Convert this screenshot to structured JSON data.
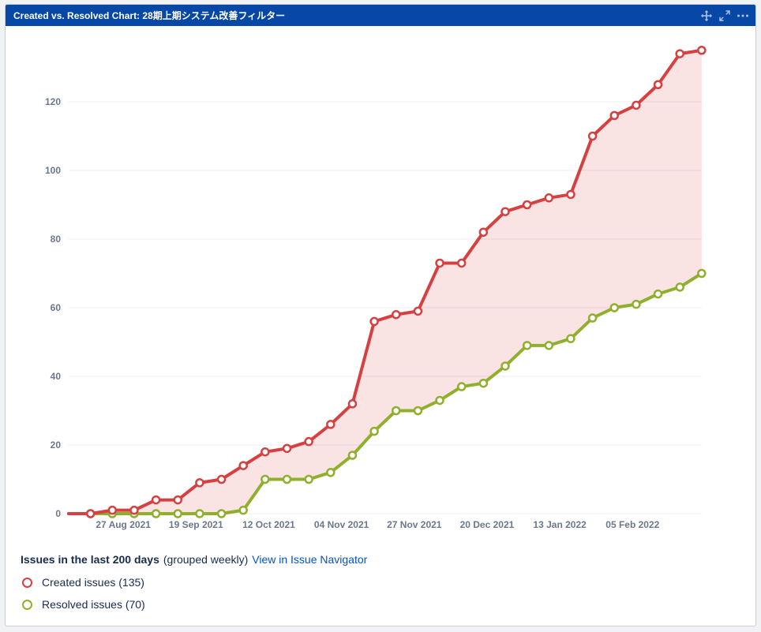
{
  "gadget": {
    "title": "Created vs. Resolved Chart: 28期上期システム改善フィルター",
    "actions": [
      {
        "icon": "move-icon"
      },
      {
        "icon": "expand-icon"
      },
      {
        "icon": "more-icon"
      }
    ]
  },
  "chart_data": {
    "type": "line",
    "x_tick_labels": [
      "27 Aug 2021",
      "19 Sep 2021",
      "12 Oct 2021",
      "04 Nov 2021",
      "27 Nov 2021",
      "20 Dec 2021",
      "13 Jan 2022",
      "05 Feb 2022"
    ],
    "y_ticks": [
      0,
      20,
      40,
      60,
      80,
      100,
      120
    ],
    "ylim": [
      0,
      135
    ],
    "grid": true,
    "fill_between": true,
    "series": [
      {
        "name": "Created issues",
        "color": "#d64040",
        "values": [
          0,
          0,
          1,
          1,
          4,
          4,
          9,
          10,
          14,
          18,
          19,
          21,
          26,
          32,
          56,
          58,
          59,
          73,
          73,
          82,
          88,
          90,
          92,
          93,
          110,
          116,
          119,
          125,
          134,
          135
        ]
      },
      {
        "name": "Resolved issues",
        "color": "#8fb02c",
        "values": [
          0,
          0,
          0,
          0,
          0,
          0,
          0,
          0,
          1,
          10,
          10,
          10,
          12,
          17,
          24,
          30,
          30,
          33,
          37,
          38,
          43,
          49,
          49,
          51,
          57,
          60,
          61,
          64,
          66,
          70
        ]
      }
    ]
  },
  "footer": {
    "title": "Issues in the last 200 days",
    "subtitle": "(grouped weekly)",
    "link": "View in Issue Navigator",
    "legend": [
      {
        "label": "Created issues (135)",
        "color": "#d64040"
      },
      {
        "label": "Resolved issues (70)",
        "color": "#8fb02c"
      }
    ]
  }
}
